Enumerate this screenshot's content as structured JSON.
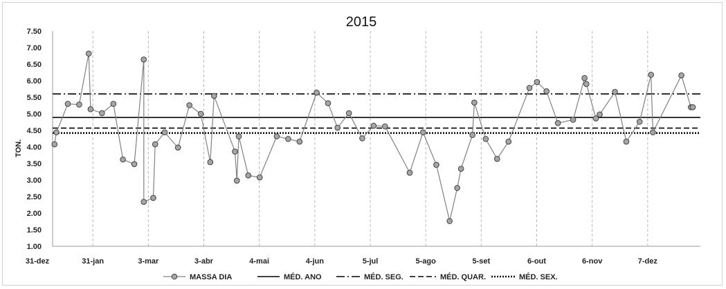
{
  "chart_data": {
    "type": "line",
    "title": "2015",
    "ylabel": "TON.",
    "xlabel": "",
    "ylim": [
      1.0,
      7.5
    ],
    "y_ticks": [
      "1.00",
      "1.50",
      "2.00",
      "2.50",
      "3.00",
      "3.50",
      "4.00",
      "4.50",
      "5.00",
      "5.50",
      "6.00",
      "6.50",
      "7.00",
      "7.50"
    ],
    "x_ticks": [
      "31-dez",
      "31-jan",
      "3-mar",
      "3-abr",
      "4-mai",
      "4-jun",
      "5-jul",
      "5-ago",
      "5-set",
      "6-out",
      "6-nov",
      "7-dez"
    ],
    "x_range_days": [
      0,
      341
    ],
    "grid": "vertical-dashed",
    "legend_position": "bottom",
    "series": [
      {
        "name": "MASSA DIA",
        "style": "line-with-markers",
        "color": "#808080",
        "marker_color": "#a6a6a6",
        "x": [
          1,
          2,
          8,
          14,
          19,
          20,
          26,
          32,
          37,
          43,
          48,
          48,
          53,
          54,
          59,
          66,
          72,
          78,
          83,
          85,
          96,
          97,
          98,
          103,
          109,
          118,
          124,
          130,
          139,
          145,
          150,
          156,
          163,
          169,
          175,
          188,
          195,
          202,
          209,
          213,
          215,
          221,
          222,
          228,
          234,
          240,
          251,
          255,
          260,
          266,
          274,
          280,
          281,
          286,
          288,
          296,
          302,
          309,
          315,
          316,
          331,
          336,
          337
        ],
        "y": [
          4.08,
          4.44,
          5.3,
          5.28,
          6.82,
          5.14,
          5.02,
          5.3,
          3.62,
          3.48,
          6.64,
          2.34,
          2.46,
          4.08,
          4.44,
          3.98,
          5.26,
          5.0,
          3.54,
          5.54,
          3.86,
          2.98,
          4.32,
          3.14,
          3.08,
          4.32,
          4.24,
          4.16,
          5.64,
          5.32,
          4.58,
          5.02,
          4.26,
          4.64,
          4.62,
          3.22,
          4.44,
          3.46,
          1.76,
          2.76,
          3.34,
          4.36,
          5.34,
          4.24,
          3.64,
          4.16,
          5.78,
          5.96,
          5.68,
          4.72,
          4.82,
          6.08,
          5.9,
          4.86,
          4.98,
          5.66,
          4.16,
          4.76,
          6.18,
          4.44,
          6.16,
          5.2,
          5.2
        ]
      },
      {
        "name": "MÉD. ANO",
        "style": "solid",
        "color": "#000000",
        "y_const": 4.89
      },
      {
        "name": "MÉD. SEG.",
        "style": "dash-dot",
        "color": "#000000",
        "y_const": 5.6
      },
      {
        "name": "MÉD. QUAR.",
        "style": "dashed",
        "color": "#000000",
        "y_const": 4.57
      },
      {
        "name": "MÉD. SEX.",
        "style": "dotted",
        "color": "#000000",
        "y_const": 4.42
      }
    ]
  }
}
